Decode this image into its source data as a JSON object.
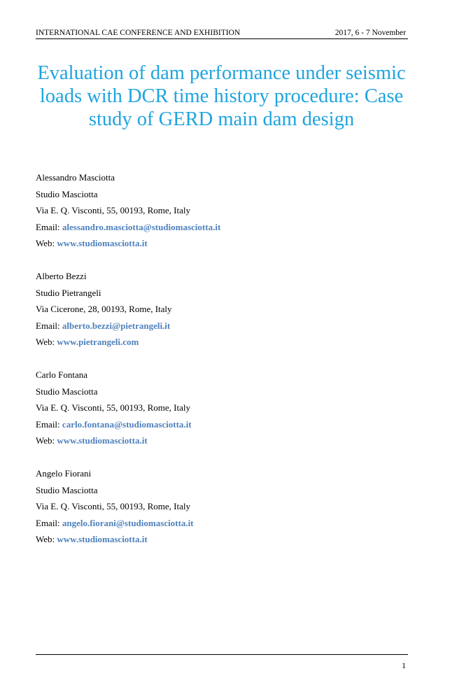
{
  "header": {
    "conference": "INTERNATIONAL CAE CONFERENCE AND EXHIBITION",
    "date": "2017, 6 - 7 November"
  },
  "title": [
    "Evaluation of dam performance under seismic",
    "loads with DCR time history procedure: Case",
    "study of GERD main dam design"
  ],
  "labels": {
    "email": "Email: ",
    "web": "Web: "
  },
  "authors": [
    {
      "name": "Alessandro Masciotta",
      "org": "Studio Masciotta",
      "address": "Via E. Q. Visconti, 55, 00193, Rome, Italy",
      "email": "alessandro.masciotta@studiomasciotta.it",
      "web": "www.studiomasciotta.it"
    },
    {
      "name": "Alberto Bezzi",
      "org": "Studio Pietrangeli",
      "address": "Via Cicerone, 28, 00193, Rome, Italy",
      "email": "alberto.bezzi@pietrangeli.it",
      "web": "www.pietrangeli.com"
    },
    {
      "name": "Carlo Fontana",
      "org": "Studio Masciotta",
      "address": "Via E. Q. Visconti, 55, 00193, Rome, Italy",
      "email": "carlo.fontana@studiomasciotta.it",
      "web": "www.studiomasciotta.it"
    },
    {
      "name": "Angelo Fiorani",
      "org": "Studio Masciotta",
      "address": "Via E. Q. Visconti, 55, 00193, Rome, Italy",
      "email": "angelo.fiorani@studiomasciotta.it",
      "web": "www.studiomasciotta.it"
    }
  ],
  "footer": {
    "page_number": "1"
  },
  "colors": {
    "title": "#1ea4e0",
    "link": "#4f81bd"
  }
}
